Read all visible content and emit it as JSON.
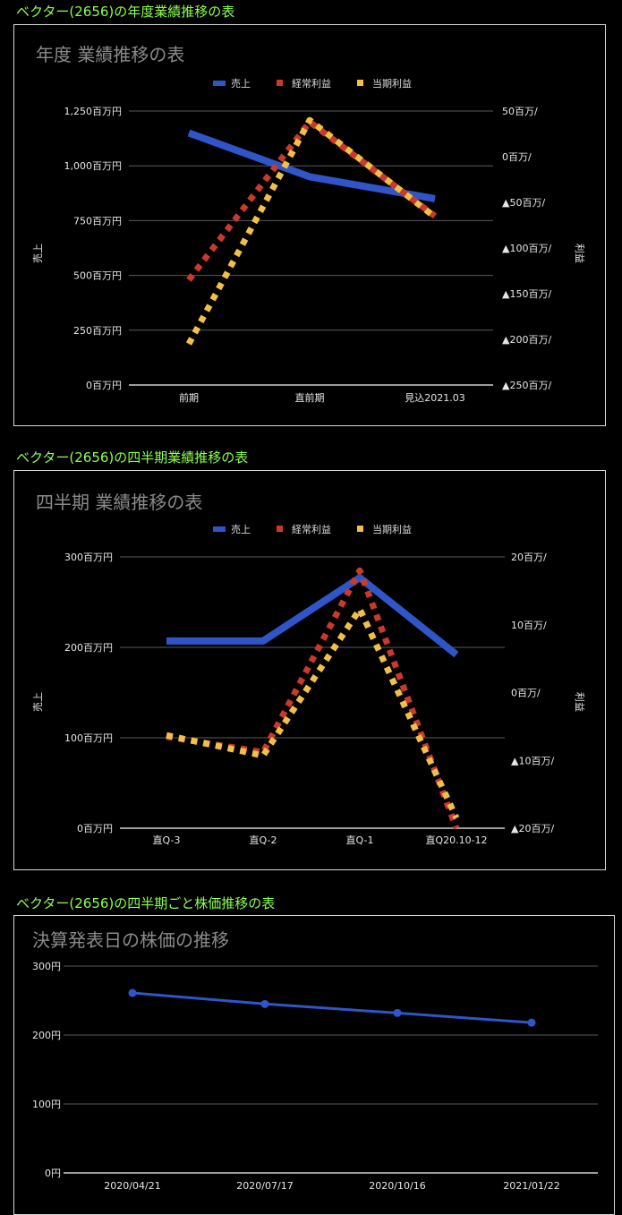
{
  "headings": {
    "annual": "ベクター(2656)の年度業績推移の表",
    "quarterly": "ベクター(2656)の四半期業績推移の表",
    "stock": "ベクター(2656)の四半期ごと株価推移の表"
  },
  "colors": {
    "sales": "#2f55c8",
    "ordinary": "#c93a2c",
    "net": "#f2c045",
    "price": "#2f55c8",
    "heading": "#8bff52"
  },
  "chart_data": [
    {
      "type": "line",
      "title": "年度 業績推移の表",
      "ylabel": "売上",
      "y2label": "利益",
      "categories": [
        "前期",
        "直前期",
        "見込2021.03"
      ],
      "ylim": [
        0,
        1250
      ],
      "yticks": [
        "0百万円",
        "250百万円",
        "500百万円",
        "750百万円",
        "1,000百万円",
        "1,250百万円"
      ],
      "y2lim": [
        -250,
        50
      ],
      "y2ticks": [
        "▲250百万/",
        "▲200百万/",
        "▲150百万/",
        "▲100百万/",
        "▲50百万/",
        "0百万/",
        "50百万/"
      ],
      "legend_position": "top",
      "series": [
        {
          "name": "売上",
          "axis": "left",
          "style": "solid",
          "color": "#2f55c8",
          "values": [
            1150,
            950,
            850
          ]
        },
        {
          "name": "経常利益",
          "axis": "right",
          "style": "dotted",
          "color": "#c93a2c",
          "values": [
            -135,
            38,
            -65
          ]
        },
        {
          "name": "当期利益",
          "axis": "right",
          "style": "dotted",
          "color": "#f2c045",
          "values": [
            -205,
            40,
            -66
          ]
        }
      ]
    },
    {
      "type": "line",
      "title": "四半期 業績推移の表",
      "ylabel": "売上",
      "y2label": "利益",
      "categories": [
        "直Q-3",
        "直Q-2",
        "直Q-1",
        "直Q20.10-12"
      ],
      "ylim": [
        0,
        300
      ],
      "yticks": [
        "0百万円",
        "100百万円",
        "200百万円",
        "300百万円"
      ],
      "y2lim": [
        -20,
        20
      ],
      "y2ticks": [
        "▲20百万/",
        "▲10百万/",
        "0百万/",
        "10百万/",
        "20百万/"
      ],
      "legend_position": "top",
      "series": [
        {
          "name": "売上",
          "axis": "left",
          "style": "solid",
          "color": "#2f55c8",
          "values": [
            207,
            207,
            277,
            192
          ]
        },
        {
          "name": "経常利益",
          "axis": "right",
          "style": "dotted",
          "color": "#c93a2c",
          "values": [
            -6.5,
            -8.8,
            18,
            -20
          ]
        },
        {
          "name": "当期利益",
          "axis": "right",
          "style": "dotted",
          "color": "#f2c045",
          "values": [
            -6.3,
            -9.3,
            12.3,
            -18.5
          ]
        }
      ]
    },
    {
      "type": "line",
      "title": "決算発表日の株価の推移",
      "categories": [
        "2020/04/21",
        "2020/07/17",
        "2020/10/16",
        "2021/01/22"
      ],
      "ylim": [
        0,
        300
      ],
      "yticks": [
        "0円",
        "100円",
        "200円",
        "300円"
      ],
      "legend_position": "none",
      "series": [
        {
          "color": "#2f55c8",
          "markers": true,
          "values": [
            261,
            245,
            232,
            218
          ]
        }
      ]
    }
  ]
}
